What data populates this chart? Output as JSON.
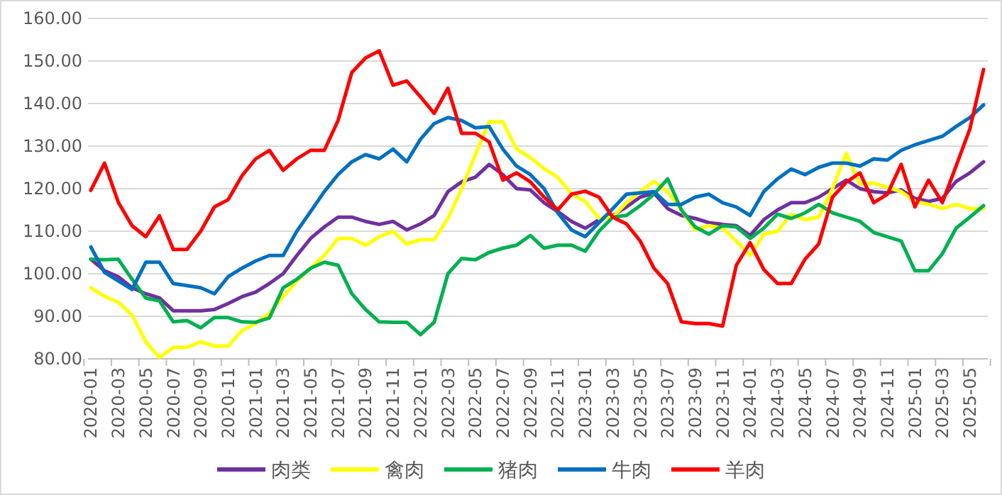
{
  "chart_data": {
    "type": "line",
    "categories": [
      "2020-01",
      null,
      "2020-03",
      null,
      "2020-05",
      null,
      "2020-07",
      null,
      "2020-09",
      null,
      "2020-11",
      null,
      "2021-01",
      null,
      "2021-03",
      null,
      "2021-05",
      null,
      "2021-07",
      null,
      "2021-09",
      null,
      "2021-11",
      null,
      "2022-01",
      null,
      "2022-03",
      null,
      "2022-05",
      null,
      "2022-07",
      null,
      "2022-09",
      null,
      "2022-11",
      null,
      "2023-01",
      null,
      "2023-03",
      null,
      "2023-05",
      null,
      "2023-07",
      null,
      "2023-09",
      null,
      "2023-11",
      null,
      "2024-01",
      null,
      "2024-03",
      null,
      "2024-05",
      null,
      "2024-07",
      null,
      "2024-09",
      null,
      "2024-11",
      null,
      "2025-01",
      null,
      "2025-03",
      null,
      "2025-05",
      null
    ],
    "ylim": [
      80,
      160
    ],
    "yticks": [
      {
        "value": 80,
        "label": "80.00"
      },
      {
        "value": 90,
        "label": "90.00"
      },
      {
        "value": 100,
        "label": "100.00"
      },
      {
        "value": 110,
        "label": "110.00"
      },
      {
        "value": 120,
        "label": "120.00"
      },
      {
        "value": 130,
        "label": "130.00"
      },
      {
        "value": 140,
        "label": "140.00"
      },
      {
        "value": 150,
        "label": "150.00"
      },
      {
        "value": 160,
        "label": "160.00"
      }
    ],
    "grid": "y",
    "legend": "bottom",
    "marker": "none",
    "line_style": "solid",
    "series": [
      {
        "name": "肉类",
        "color": "#7030a0",
        "values": [
          103.4,
          100.7,
          99.3,
          96.7,
          95.3,
          94.3,
          91.3,
          91.3,
          91.3,
          91.6,
          93,
          94.6,
          95.7,
          97.7,
          100,
          104.3,
          108.3,
          111,
          113.3,
          113.3,
          112.3,
          111.6,
          112.3,
          110.3,
          111.7,
          113.7,
          119.3,
          121.6,
          122.7,
          125.7,
          123.3,
          120,
          119.7,
          116.7,
          114.6,
          112.3,
          110.7,
          112.7,
          113.7,
          115.7,
          118,
          119,
          115.3,
          113.7,
          113,
          112,
          111.6,
          111.3,
          109,
          112.7,
          115,
          116.7,
          116.7,
          118,
          120,
          122,
          120,
          119.3,
          119,
          119.7,
          117.7,
          117,
          117.7,
          121.7,
          123.7,
          126.3
        ]
      },
      {
        "name": "禽肉",
        "color": "#ffff00",
        "values": [
          96.7,
          94.7,
          93.3,
          90.3,
          84,
          80.3,
          82.7,
          82.7,
          84,
          83,
          83,
          86.6,
          88.3,
          90.7,
          94.6,
          98.3,
          101.3,
          104.3,
          108.3,
          108.3,
          106.7,
          108.7,
          110,
          107,
          108,
          108,
          113,
          120,
          128,
          135.7,
          135.7,
          129.3,
          127.3,
          124.7,
          122.7,
          118.7,
          117,
          113,
          113.3,
          116.7,
          119.3,
          121.7,
          119.3,
          115,
          110.3,
          111.3,
          110.7,
          107.7,
          104.3,
          109.3,
          110,
          114,
          112.7,
          113.3,
          120,
          128.3,
          121,
          121.3,
          120.3,
          119.3,
          117,
          116.3,
          115.3,
          116.3,
          115.3,
          115.3
        ]
      },
      {
        "name": "猪肉",
        "color": "#00b050",
        "values": [
          103.4,
          103.3,
          103.4,
          98.7,
          94.3,
          93.6,
          88.7,
          89,
          87.3,
          89.7,
          89.7,
          88.7,
          88.6,
          89.6,
          96.7,
          98.7,
          101.3,
          102.7,
          102,
          95.3,
          91.6,
          88.7,
          88.6,
          88.6,
          85.7,
          88.6,
          100,
          103.6,
          103.3,
          105,
          106,
          106.7,
          109,
          106,
          106.7,
          106.7,
          105.3,
          110,
          113.3,
          113.7,
          116,
          118.7,
          122.3,
          115,
          111,
          109.3,
          111.3,
          111,
          108.3,
          110.7,
          114,
          113,
          114.3,
          116.3,
          114.3,
          113.3,
          112.3,
          109.7,
          108.7,
          107.7,
          100.7,
          100.7,
          104.7,
          110.7,
          113.3,
          116
        ]
      },
      {
        "name": "牛肉",
        "color": "#0070c0",
        "values": [
          106.3,
          100.3,
          98.3,
          96.3,
          102.7,
          102.7,
          97.7,
          97.2,
          96.7,
          95.3,
          99.3,
          101.3,
          103,
          104.3,
          104.3,
          110,
          114.6,
          119.3,
          123.3,
          126.3,
          128,
          127,
          129.3,
          126.3,
          131.6,
          135.3,
          136.7,
          136,
          134.3,
          134.6,
          129.3,
          125.3,
          123.3,
          120,
          114.3,
          110.3,
          108.7,
          112,
          115.3,
          118.7,
          119,
          119.3,
          116.3,
          116.3,
          118,
          118.7,
          116.7,
          115.7,
          113.7,
          119.3,
          122.3,
          124.6,
          123.3,
          125,
          126,
          126,
          125.3,
          127,
          126.7,
          129,
          130.3,
          131.3,
          132.3,
          134.6,
          136.7,
          139.7
        ]
      },
      {
        "name": "羊肉",
        "color": "#ff0000",
        "values": [
          119.6,
          126,
          116.8,
          111.3,
          108.7,
          113.6,
          105.7,
          105.7,
          110,
          115.7,
          117.4,
          123,
          127,
          129,
          124.3,
          127,
          129,
          129,
          136,
          147.3,
          150.7,
          152.4,
          144.3,
          145.3,
          141.6,
          137.7,
          143.6,
          133,
          133,
          131,
          122,
          123.7,
          121.6,
          118,
          115,
          118.7,
          119.4,
          118,
          113.3,
          111.7,
          107.7,
          101.3,
          97.7,
          88.7,
          88.3,
          88.3,
          87.7,
          102,
          107.3,
          101,
          97.7,
          97.7,
          103.4,
          107,
          118,
          121.5,
          123.7,
          116.7,
          118.7,
          125.7,
          115.7,
          122,
          116.7,
          125.3,
          134,
          148
        ]
      }
    ]
  }
}
